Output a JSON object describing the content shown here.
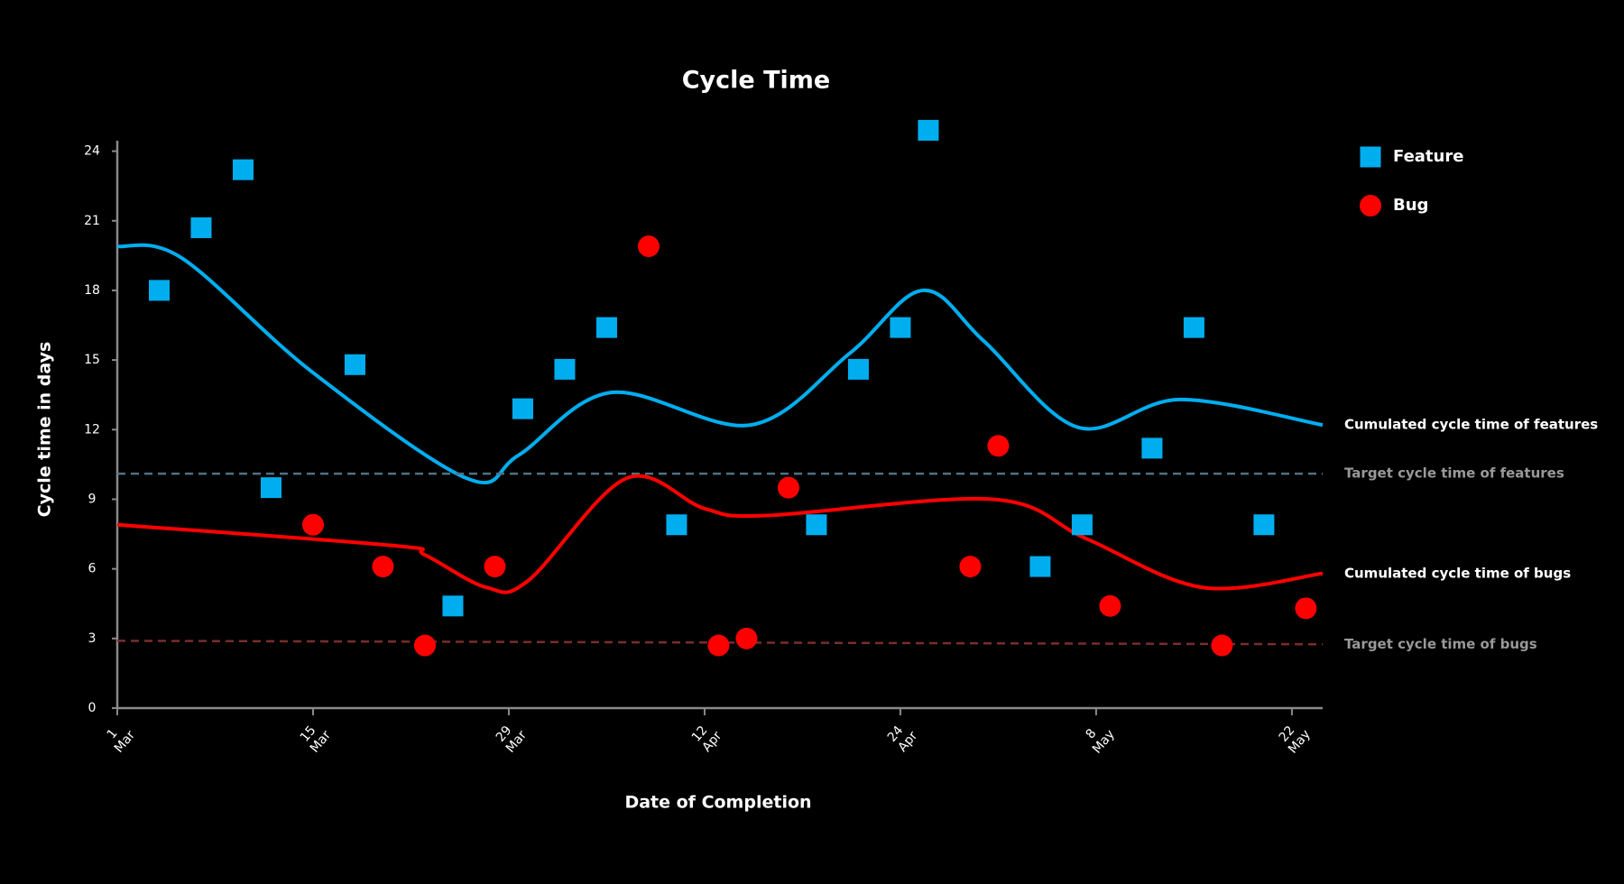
{
  "chart_data": {
    "type": "scatter",
    "title": "Cycle Time",
    "xlabel": "Date of Completion",
    "ylabel": "Cycle time in days",
    "xlim": [
      0,
      86.2
    ],
    "ylim": [
      0,
      24.45
    ],
    "xticks": [
      {
        "value": 0,
        "label": "1 Mar"
      },
      {
        "value": 14,
        "label": "15 Mar"
      },
      {
        "value": 28,
        "label": "29 Mar"
      },
      {
        "value": 42,
        "label": "12 Apr"
      },
      {
        "value": 56,
        "label": "24 Apr"
      },
      {
        "value": 70,
        "label": "8 May"
      },
      {
        "value": 84,
        "label": "22 May"
      }
    ],
    "yticks": [
      0,
      3,
      6,
      9,
      12,
      15,
      18,
      21,
      24
    ],
    "legend": "right",
    "grid": false,
    "series": [
      {
        "name": "Feature",
        "type": "scatter",
        "marker": "square",
        "color": "#00aeef",
        "x": [
          3,
          6,
          9,
          11,
          17,
          24,
          29,
          32,
          35,
          40,
          50,
          53,
          56,
          58,
          66,
          69,
          74,
          77,
          82
        ],
        "values": [
          18.0,
          20.7,
          23.2,
          9.5,
          14.8,
          4.4,
          12.9,
          14.6,
          16.4,
          7.9,
          7.9,
          14.6,
          16.4,
          24.9,
          6.1,
          7.9,
          11.2,
          16.4,
          7.9
        ]
      },
      {
        "name": "Bug",
        "type": "scatter",
        "marker": "circle",
        "color": "#ff0000",
        "x": [
          14,
          19,
          22,
          27,
          38,
          43,
          45,
          48,
          61,
          63,
          71,
          79,
          85
        ],
        "values": [
          7.9,
          6.1,
          2.7,
          6.1,
          19.9,
          2.7,
          3.0,
          9.5,
          6.1,
          11.3,
          4.4,
          2.7,
          4.3
        ]
      },
      {
        "name": "Cumulated cycle time of features",
        "type": "line",
        "dashed": false,
        "color": "#00aeef",
        "label_color": "#ffffff",
        "x": [
          0,
          4.6,
          13.9,
          25,
          28.7,
          35.3,
          45.3,
          52.4,
          57.6,
          62,
          68.7,
          76,
          86.2
        ],
        "values": [
          19.9,
          19.4,
          14.5,
          9.9,
          10.9,
          13.6,
          12.2,
          15.3,
          18.0,
          15.8,
          12.1,
          13.3,
          12.2
        ]
      },
      {
        "name": "Target cycle time of features",
        "type": "line",
        "dashed": true,
        "color": "#4f7184",
        "label_color": "#999999",
        "x": [
          0,
          86.2
        ],
        "values": [
          10.1,
          10.1
        ]
      },
      {
        "name": "Cumulated cycle time of bugs",
        "type": "line",
        "dashed": false,
        "color": "#ff0000",
        "label_color": "#ffffff",
        "x": [
          0,
          19.8,
          22,
          26.4,
          29.4,
          36.4,
          42,
          46.4,
          62.6,
          69.3,
          77.6,
          86.2
        ],
        "values": [
          7.9,
          7.0,
          6.6,
          5.2,
          5.5,
          9.9,
          8.6,
          8.3,
          9.0,
          7.3,
          5.2,
          5.8
        ]
      },
      {
        "name": "Target cycle time of bugs",
        "type": "line",
        "dashed": true,
        "color": "#7a2d2d",
        "label_color": "#999999",
        "x": [
          0,
          86.2
        ],
        "values": [
          2.9,
          2.75
        ]
      }
    ]
  }
}
